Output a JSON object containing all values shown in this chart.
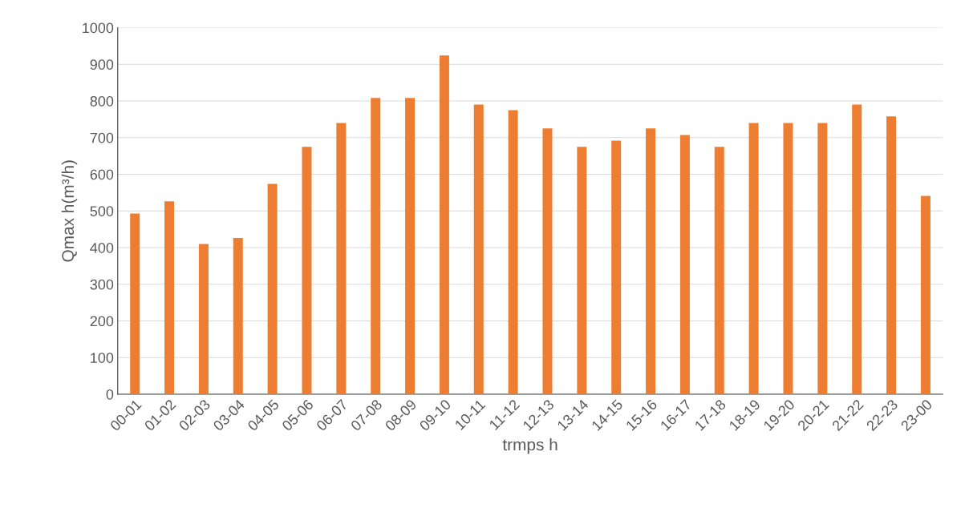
{
  "chart_data": {
    "type": "bar",
    "xlabel": "trmps h",
    "ylabel": "Qmax h(m³/h)",
    "categories": [
      "00-01",
      "01-02",
      "02-03",
      "03-04",
      "04-05",
      "05-06",
      "06-07",
      "07-08",
      "08-09",
      "09-10",
      "10-11",
      "11-12",
      "12-13",
      "13-14",
      "14-15",
      "15-16",
      "16-17",
      "17-18",
      "18-19",
      "19-20",
      "20-21",
      "21-22",
      "22-23",
      "23-00"
    ],
    "values": [
      493,
      526,
      410,
      426,
      574,
      675,
      740,
      808,
      808,
      924,
      790,
      775,
      725,
      675,
      692,
      725,
      707,
      675,
      740,
      740,
      740,
      790,
      758,
      541
    ],
    "color": "#ed7d31",
    "ylim": [
      0,
      1000
    ],
    "yticks": [
      0,
      100,
      200,
      300,
      400,
      500,
      600,
      700,
      800,
      900,
      1000
    ],
    "grid": "y"
  }
}
